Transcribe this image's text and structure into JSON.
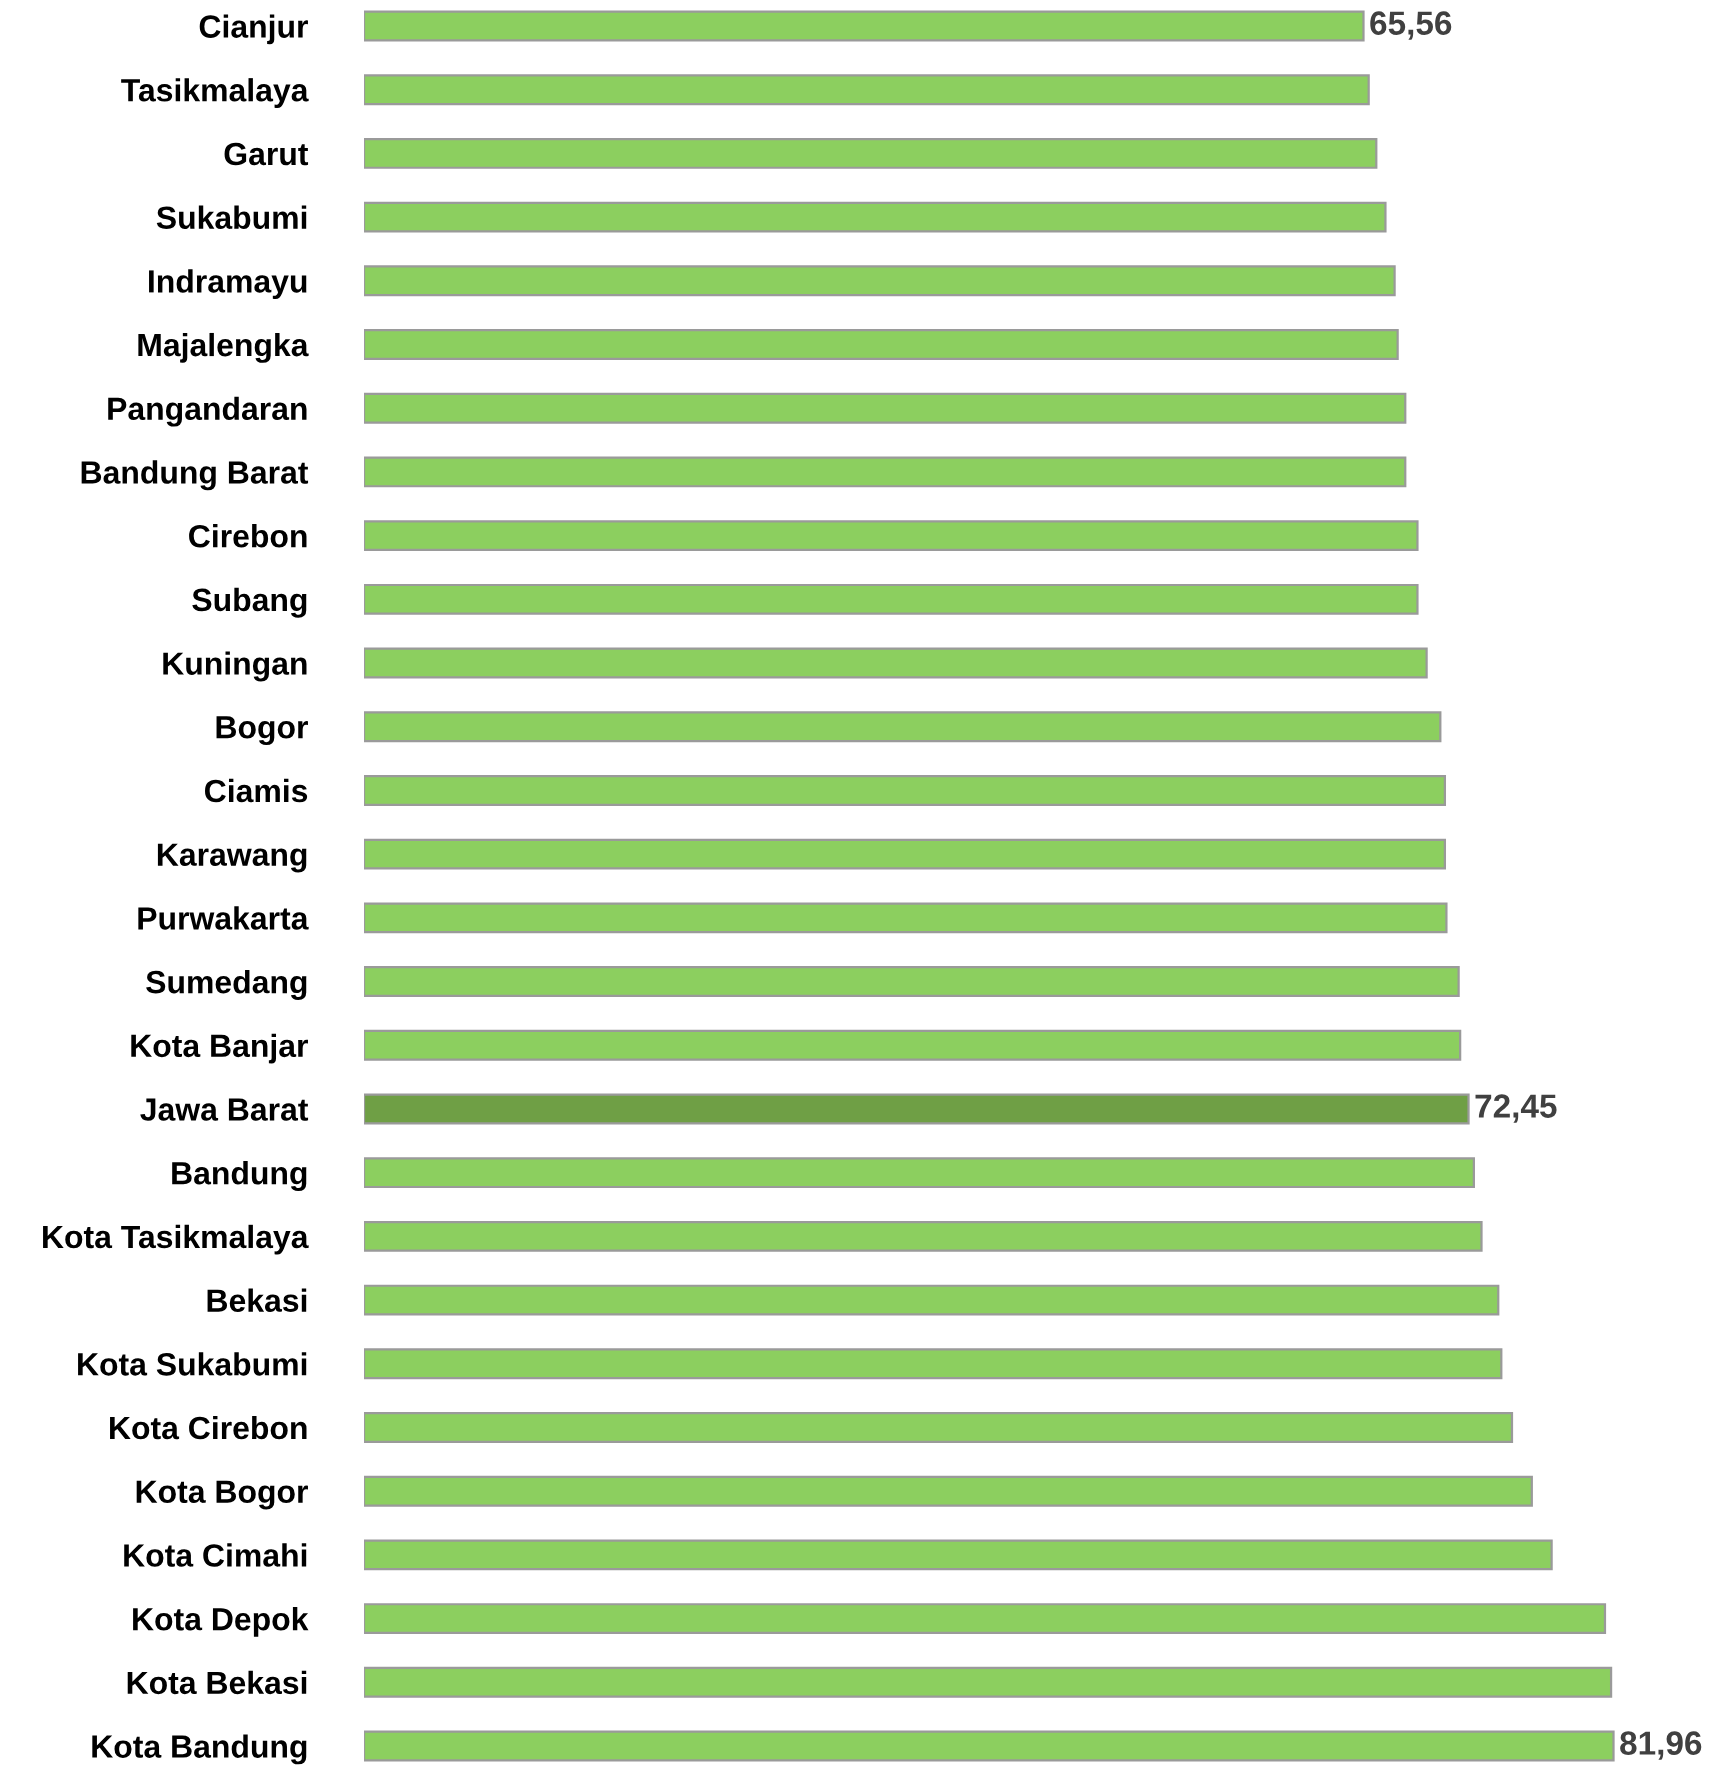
{
  "chart_data": {
    "type": "bar",
    "orientation": "horizontal",
    "categories": [
      "Cianjur",
      "Tasikmalaya",
      "Garut",
      "Sukabumi",
      "Indramayu",
      "Majalengka",
      "Pangandaran",
      "Bandung Barat",
      "Cirebon",
      "Subang",
      "Kuningan",
      "Bogor",
      "Ciamis",
      "Karawang",
      "Purwakarta",
      "Sumedang",
      "Kota Banjar",
      "Jawa Barat",
      "Bandung",
      "Kota Tasikmalaya",
      "Bekasi",
      "Kota Sukabumi",
      "Kota Cirebon",
      "Kota Bogor",
      "Kota Cimahi",
      "Kota Depok",
      "Kota Bekasi",
      "Kota Bandung"
    ],
    "values": [
      65.56,
      65.9,
      66.4,
      67.0,
      67.6,
      67.8,
      68.3,
      68.3,
      69.1,
      69.1,
      69.7,
      70.6,
      70.9,
      70.9,
      71.0,
      71.8,
      71.9,
      72.45,
      72.8,
      73.3,
      74.4,
      74.6,
      75.3,
      76.6,
      77.9,
      81.4,
      81.8,
      81.96
    ],
    "colors": [
      "#8ccf5f",
      "#8ccf5f",
      "#8ccf5f",
      "#8ccf5f",
      "#8ccf5f",
      "#8ccf5f",
      "#8ccf5f",
      "#8ccf5f",
      "#8ccf5f",
      "#8ccf5f",
      "#8ccf5f",
      "#8ccf5f",
      "#8ccf5f",
      "#8ccf5f",
      "#8ccf5f",
      "#8ccf5f",
      "#8ccf5f",
      "#6f9f45",
      "#8ccf5f",
      "#8ccf5f",
      "#8ccf5f",
      "#8ccf5f",
      "#8ccf5f",
      "#8ccf5f",
      "#8ccf5f",
      "#8ccf5f",
      "#8ccf5f",
      "#8ccf5f"
    ],
    "value_labels": [
      "65,56",
      null,
      null,
      null,
      null,
      null,
      null,
      null,
      null,
      null,
      null,
      null,
      null,
      null,
      null,
      null,
      null,
      "72,45",
      null,
      null,
      null,
      null,
      null,
      null,
      null,
      null,
      null,
      "81,96"
    ],
    "tick_labels": "y",
    "grid": false,
    "legend": false
  }
}
